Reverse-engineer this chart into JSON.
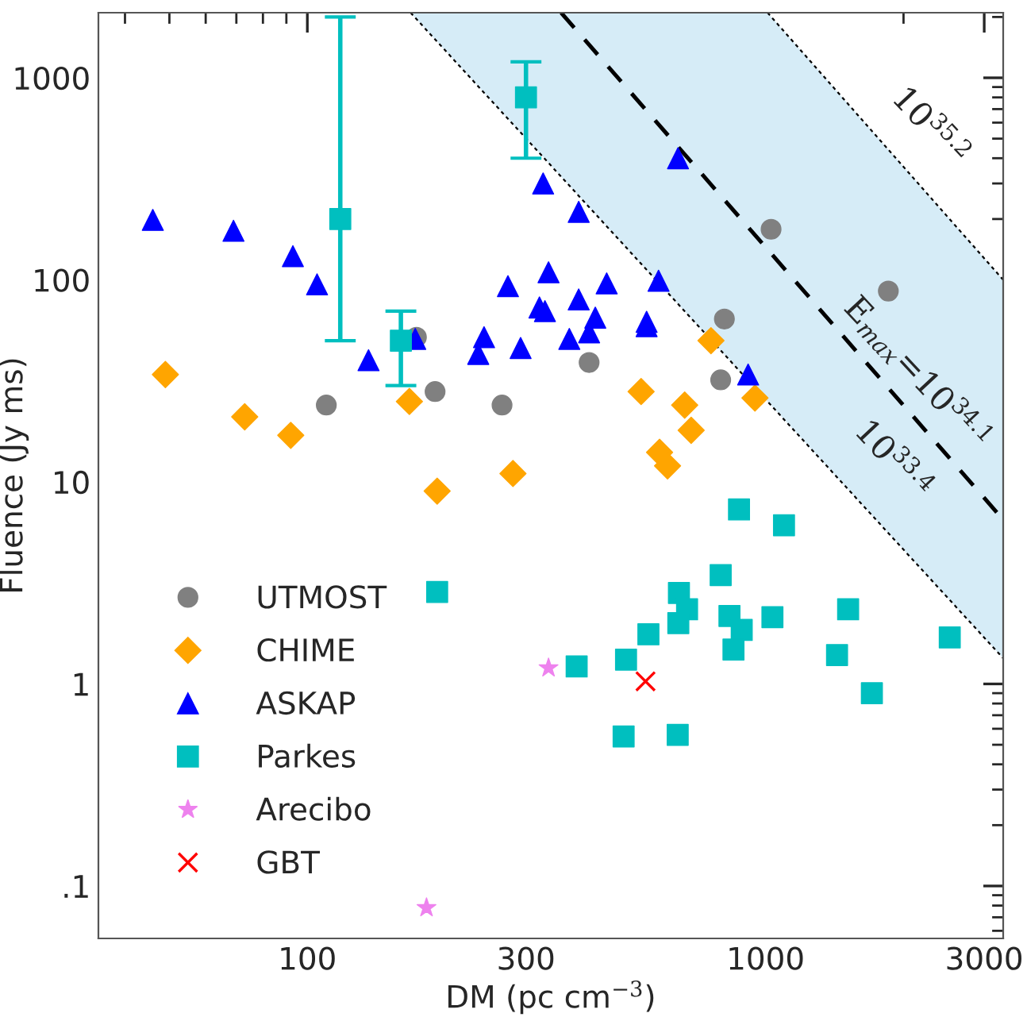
{
  "chart_data": {
    "type": "scatter",
    "xlabel": "DM (pc cm$^{−3}$)",
    "ylabel": "Fluence (Jy ms)",
    "log": "xy",
    "xlim": [
      35,
      3300
    ],
    "ylim": [
      0.055,
      2100
    ],
    "xticks": [
      100,
      300,
      1000,
      3000
    ],
    "yticks": [
      {
        "value": 0.1,
        "label": ".1"
      },
      1,
      10,
      100,
      1000
    ],
    "legend": "bottom left",
    "grid": false,
    "series": [
      {
        "type": "line",
        "color": "#000000",
        "line_style": "dotted",
        "x": [
          168,
          1010,
          3300
        ],
        "values": [
          2100,
          25,
          1.34
        ],
        "lower": [
          2100,
          25,
          1.34
        ],
        "upper": [
          2100,
          2100,
          100
        ]
      },
      {
        "type": "line",
        "color": "#000000",
        "line_style": "dotted",
        "x": [
          1010,
          3300
        ],
        "values": [
          2100,
          100
        ]
      },
      {
        "type": "line",
        "color": "#000000",
        "line_style": "dashed",
        "x": [
          358,
          3300
        ],
        "values": [
          2100,
          6.5
        ]
      },
      {
        "name": "UTMOST",
        "color": "#808080",
        "marker": "circle",
        "x": [
          110,
          173,
          190,
          266,
          412,
          798,
          813,
          1028,
          1853
        ],
        "values": [
          24,
          52,
          28,
          24,
          39,
          32,
          64,
          178,
          88
        ]
      },
      {
        "name": "CHIME",
        "color": "#ffa500",
        "marker": "diamond",
        "x": [
          49,
          73,
          92,
          167,
          192,
          281,
          760,
          535,
          666,
          688,
          587,
          611,
          948
        ],
        "values": [
          34,
          21,
          17,
          25,
          9,
          11,
          50,
          28,
          24,
          18,
          14,
          12,
          26
        ]
      },
      {
        "name": "ASKAP",
        "color": "#0000ff",
        "marker": "triangle",
        "x": [
          46,
          69,
          93,
          105,
          136,
          172,
          236,
          243,
          292,
          274,
          327,
          336,
          321,
          330,
          373,
          391,
          391,
          450,
          425,
          412,
          584,
          550,
          550,
          644,
          916
        ],
        "values": [
          198,
          175,
          131,
          95,
          40,
          51,
          43,
          52,
          46,
          93,
          300,
          109,
          73,
          70,
          51,
          217,
          80,
          96,
          65,
          55,
          99,
          62,
          59,
          400,
          34
        ]
      },
      {
        "name": "Parkes",
        "color": "#00bfbf",
        "marker": "square",
        "x": [
          118,
          160,
          300,
          192,
          387,
          496,
          490,
          555,
          647,
          674,
          645,
          643,
          798,
          875,
          834,
          887,
          851,
          1035,
          1097,
          1432,
          1514,
          1706,
          2523
        ],
        "values": [
          200,
          50,
          800,
          2.85,
          1.22,
          1.32,
          0.55,
          1.76,
          2.82,
          2.34,
          2.0,
          0.56,
          3.46,
          7.3,
          2.17,
          1.85,
          1.48,
          2.14,
          6.1,
          1.39,
          2.34,
          0.9,
          1.7
        ],
        "errors": [
          [
            50,
            2000
          ],
          [
            30,
            70
          ],
          [
            400,
            1200
          ],
          null,
          null,
          null,
          null,
          null,
          null,
          null,
          null,
          null,
          null,
          null,
          null,
          null,
          null,
          null,
          null,
          null,
          null,
          null,
          null
        ]
      },
      {
        "name": "Arecibo",
        "color": "#ee82ee",
        "marker": "star",
        "x": [
          182,
          336
        ],
        "values": [
          0.078,
          1.2
        ]
      },
      {
        "name": "GBT",
        "color": "#ff0000",
        "marker": "cross",
        "x": [
          547
        ],
        "values": [
          1.03
        ]
      }
    ],
    "annotations": [
      "10$^{35.2}$",
      "E$_{max}$=10$^{34.1}$",
      "10$^{33.4}$"
    ]
  }
}
